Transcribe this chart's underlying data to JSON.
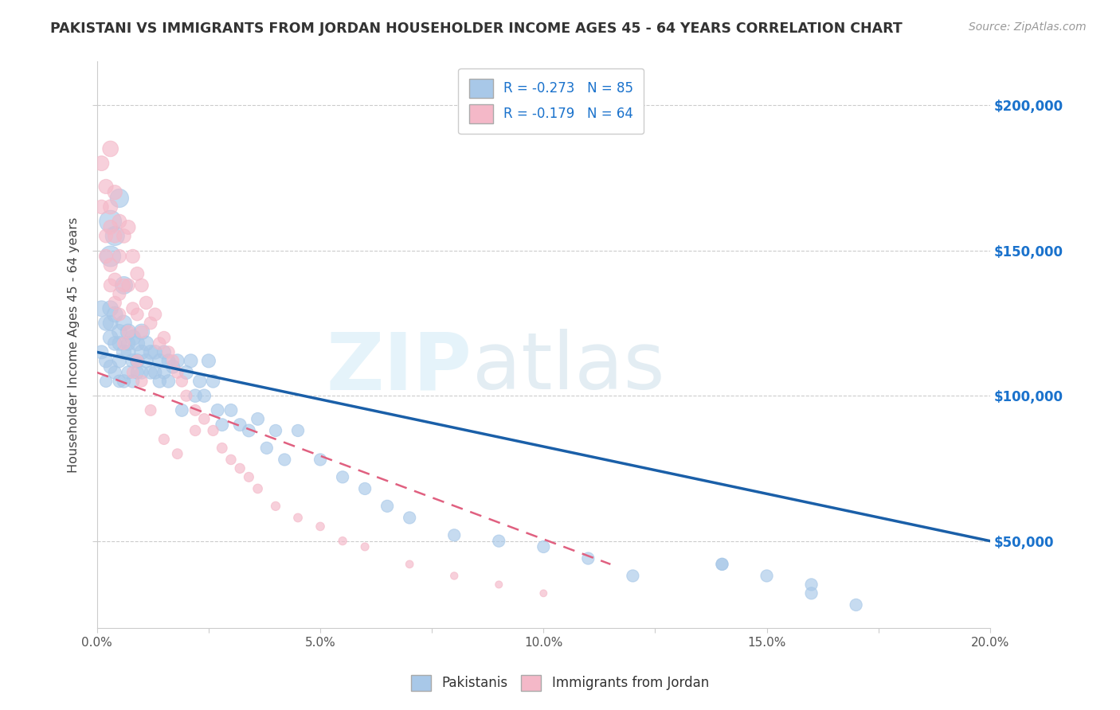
{
  "title": "PAKISTANI VS IMMIGRANTS FROM JORDAN HOUSEHOLDER INCOME AGES 45 - 64 YEARS CORRELATION CHART",
  "source": "Source: ZipAtlas.com",
  "ylabel": "Householder Income Ages 45 - 64 years",
  "ytick_labels": [
    "$50,000",
    "$100,000",
    "$150,000",
    "$200,000"
  ],
  "ytick_values": [
    50000,
    100000,
    150000,
    200000
  ],
  "legend_label_1": "Pakistanis",
  "legend_label_2": "Immigrants from Jordan",
  "blue_color": "#a8c8e8",
  "pink_color": "#f4b8c8",
  "line_blue": "#1a5fa8",
  "line_pink": "#e06080",
  "xmin": 0.0,
  "xmax": 0.2,
  "ymin": 20000,
  "ymax": 215000,
  "r_pakistani": -0.273,
  "r_jordan": -0.179,
  "n_pakistani": 85,
  "n_jordan": 64,
  "blue_line_x": [
    0.0,
    0.2
  ],
  "blue_line_y": [
    115000,
    50000
  ],
  "pink_line_x": [
    0.0,
    0.115
  ],
  "pink_line_y": [
    108000,
    42000
  ],
  "pak_x": [
    0.001,
    0.001,
    0.002,
    0.002,
    0.002,
    0.003,
    0.003,
    0.003,
    0.003,
    0.004,
    0.004,
    0.004,
    0.005,
    0.005,
    0.005,
    0.005,
    0.006,
    0.006,
    0.006,
    0.007,
    0.007,
    0.007,
    0.007,
    0.008,
    0.008,
    0.008,
    0.009,
    0.009,
    0.009,
    0.01,
    0.01,
    0.01,
    0.011,
    0.011,
    0.012,
    0.012,
    0.013,
    0.013,
    0.014,
    0.014,
    0.015,
    0.015,
    0.016,
    0.016,
    0.017,
    0.018,
    0.019,
    0.02,
    0.021,
    0.022,
    0.023,
    0.024,
    0.025,
    0.026,
    0.027,
    0.028,
    0.03,
    0.032,
    0.034,
    0.036,
    0.038,
    0.04,
    0.042,
    0.045,
    0.05,
    0.055,
    0.06,
    0.065,
    0.07,
    0.08,
    0.09,
    0.1,
    0.11,
    0.12,
    0.14,
    0.16,
    0.14,
    0.15,
    0.16,
    0.17,
    0.003,
    0.003,
    0.004,
    0.005,
    0.006
  ],
  "pak_y": [
    130000,
    115000,
    125000,
    112000,
    105000,
    130000,
    120000,
    110000,
    125000,
    128000,
    118000,
    108000,
    122000,
    112000,
    105000,
    118000,
    125000,
    115000,
    105000,
    122000,
    115000,
    108000,
    118000,
    120000,
    112000,
    105000,
    118000,
    112000,
    108000,
    122000,
    115000,
    108000,
    118000,
    112000,
    115000,
    108000,
    115000,
    108000,
    112000,
    105000,
    115000,
    108000,
    112000,
    105000,
    110000,
    112000,
    95000,
    108000,
    112000,
    100000,
    105000,
    100000,
    112000,
    105000,
    95000,
    90000,
    95000,
    90000,
    88000,
    92000,
    82000,
    88000,
    78000,
    88000,
    78000,
    72000,
    68000,
    62000,
    58000,
    52000,
    50000,
    48000,
    44000,
    38000,
    42000,
    35000,
    42000,
    38000,
    32000,
    28000,
    160000,
    148000,
    155000,
    168000,
    138000
  ],
  "pak_sizes": [
    200,
    150,
    180,
    150,
    120,
    200,
    180,
    150,
    180,
    200,
    160,
    140,
    180,
    150,
    130,
    160,
    200,
    170,
    140,
    200,
    170,
    140,
    160,
    200,
    160,
    140,
    180,
    160,
    140,
    200,
    170,
    140,
    180,
    160,
    160,
    140,
    160,
    140,
    160,
    140,
    150,
    140,
    150,
    140,
    150,
    150,
    130,
    150,
    150,
    140,
    140,
    140,
    150,
    140,
    130,
    130,
    130,
    130,
    130,
    130,
    120,
    120,
    120,
    120,
    120,
    120,
    120,
    120,
    120,
    120,
    120,
    120,
    120,
    120,
    120,
    120,
    120,
    120,
    120,
    120,
    400,
    350,
    300,
    280,
    250
  ],
  "jor_x": [
    0.001,
    0.001,
    0.002,
    0.002,
    0.003,
    0.003,
    0.003,
    0.004,
    0.004,
    0.004,
    0.005,
    0.005,
    0.005,
    0.006,
    0.006,
    0.007,
    0.007,
    0.008,
    0.008,
    0.009,
    0.009,
    0.01,
    0.01,
    0.011,
    0.012,
    0.013,
    0.014,
    0.015,
    0.016,
    0.017,
    0.018,
    0.019,
    0.02,
    0.022,
    0.024,
    0.026,
    0.028,
    0.03,
    0.032,
    0.034,
    0.036,
    0.04,
    0.045,
    0.05,
    0.055,
    0.06,
    0.07,
    0.08,
    0.09,
    0.1,
    0.002,
    0.003,
    0.003,
    0.004,
    0.005,
    0.006,
    0.007,
    0.008,
    0.009,
    0.01,
    0.012,
    0.015,
    0.018,
    0.022
  ],
  "jor_y": [
    180000,
    165000,
    172000,
    155000,
    185000,
    165000,
    145000,
    170000,
    155000,
    140000,
    160000,
    148000,
    135000,
    155000,
    138000,
    158000,
    138000,
    148000,
    130000,
    142000,
    128000,
    138000,
    122000,
    132000,
    125000,
    128000,
    118000,
    120000,
    115000,
    112000,
    108000,
    105000,
    100000,
    95000,
    92000,
    88000,
    82000,
    78000,
    75000,
    72000,
    68000,
    62000,
    58000,
    55000,
    50000,
    48000,
    42000,
    38000,
    35000,
    32000,
    148000,
    138000,
    158000,
    132000,
    128000,
    118000,
    122000,
    108000,
    112000,
    105000,
    95000,
    85000,
    80000,
    88000
  ],
  "jor_sizes": [
    180,
    160,
    170,
    150,
    200,
    170,
    150,
    170,
    155,
    140,
    165,
    150,
    135,
    160,
    140,
    165,
    140,
    155,
    130,
    148,
    130,
    145,
    125,
    138,
    130,
    135,
    125,
    128,
    122,
    118,
    112,
    108,
    105,
    100,
    95,
    90,
    85,
    80,
    78,
    75,
    70,
    65,
    60,
    58,
    55,
    52,
    48,
    45,
    42,
    40,
    155,
    145,
    165,
    138,
    132,
    125,
    128,
    112,
    118,
    108,
    100,
    90,
    85,
    92
  ]
}
